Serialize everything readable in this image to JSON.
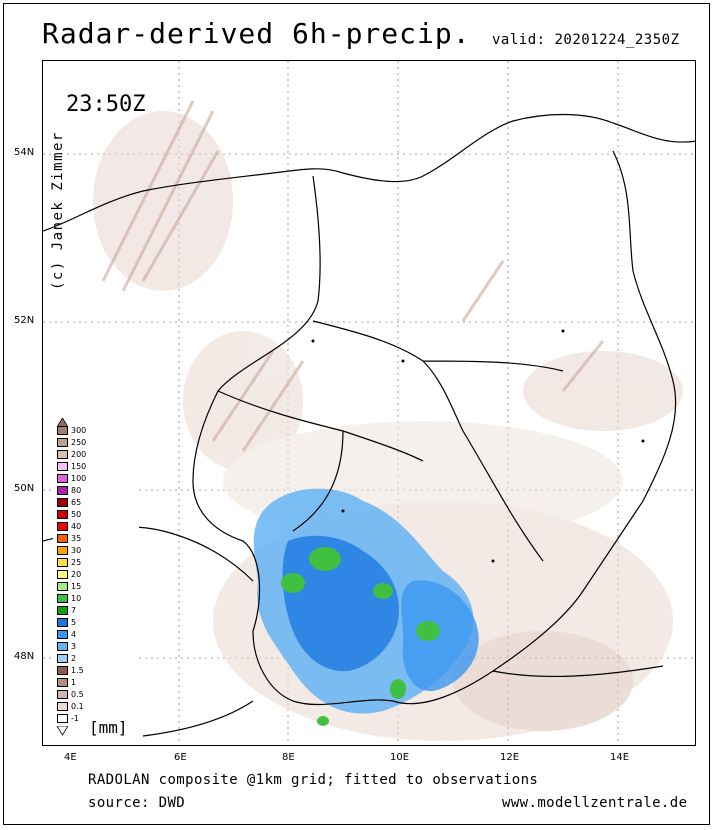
{
  "title": "Radar-derived 6h-precip.",
  "valid": "valid: 20201224_2350Z",
  "time": "23:50Z",
  "credit": "(c) Janek Zimmer",
  "footer": {
    "line1": "RADOLAN composite @1km grid; fitted to observations",
    "line2": "source: DWD",
    "url": "www.modellzentrale.de"
  },
  "lat_ticks": [
    "54N",
    "52N",
    "50N",
    "48N"
  ],
  "lon_ticks": [
    "4E",
    "6E",
    "8E",
    "10E",
    "12E",
    "14E"
  ],
  "legend": {
    "unit": "[mm]",
    "levels": [
      {
        "label": "300",
        "color": "#a08070"
      },
      {
        "label": "250",
        "color": "#bca090"
      },
      {
        "label": "200",
        "color": "#d8c0b0"
      },
      {
        "label": "150",
        "color": "#f4c0f4"
      },
      {
        "label": "100",
        "color": "#e060e0"
      },
      {
        "label": "80",
        "color": "#b020b0"
      },
      {
        "label": "65",
        "color": "#a00000"
      },
      {
        "label": "50",
        "color": "#d00000"
      },
      {
        "label": "40",
        "color": "#f00000"
      },
      {
        "label": "35",
        "color": "#ff6000"
      },
      {
        "label": "30",
        "color": "#ffa000"
      },
      {
        "label": "25",
        "color": "#ffe040"
      },
      {
        "label": "20",
        "color": "#ffff80"
      },
      {
        "label": "15",
        "color": "#a0f080"
      },
      {
        "label": "10",
        "color": "#40c040"
      },
      {
        "label": "7",
        "color": "#10a010"
      },
      {
        "label": "5",
        "color": "#1e78e0"
      },
      {
        "label": "4",
        "color": "#3c96f0"
      },
      {
        "label": "3",
        "color": "#64b4f4"
      },
      {
        "label": "2",
        "color": "#a0d0f8"
      },
      {
        "label": "1.5",
        "color": "#8c5a50"
      },
      {
        "label": "1",
        "color": "#b48c80"
      },
      {
        "label": "0.5",
        "color": "#d2b4a8"
      },
      {
        "label": "0.1",
        "color": "#ecdcd6"
      },
      {
        "label": "-1",
        "color": "#ffffff"
      }
    ]
  }
}
